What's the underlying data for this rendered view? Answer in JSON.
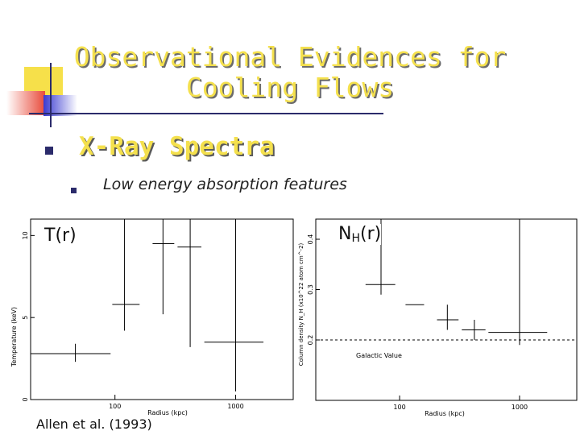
{
  "slide": {
    "title": "Observational Evidences for Cooling Flows",
    "heading": "X-Ray Spectra",
    "subpoint": "Low energy absorption features",
    "citation": "Allen et al. (1993)"
  },
  "colors": {
    "title": "#f4e04d",
    "bullet": "#2b2b6b",
    "deco_yellow": "#f6e04a",
    "deco_red": "#e84a3a",
    "deco_blue": "#3a3ad0"
  },
  "left_plot": {
    "label": "T(r)",
    "ylabel": "Temperature (keV)",
    "xlabel": "Radius (kpc)",
    "yticks": [
      "0",
      "5",
      "10"
    ],
    "xticks": [
      "100",
      "1000"
    ]
  },
  "right_plot": {
    "label_main": "N",
    "label_sub": "H",
    "label_tail": "(r)",
    "ylabel": "Column density N_H (x10^22 atom cm^-2)",
    "xlabel": "Radius (kpc)",
    "yticks": [
      "0.2",
      "0.3",
      "0.4"
    ],
    "xticks": [
      "100",
      "1000"
    ],
    "reference_label": "Galactic Value"
  },
  "chart_data": [
    {
      "type": "scatter",
      "title": "",
      "xlabel": "Radius (kpc)",
      "ylabel": "Temperature (keV)",
      "xscale": "log",
      "xlim": [
        20,
        3000
      ],
      "ylim": [
        0,
        11
      ],
      "points": [
        {
          "x": 47,
          "x_lo": 20,
          "x_hi": 92,
          "y": 2.8,
          "y_lo": 2.3,
          "y_hi": 3.4
        },
        {
          "x": 120,
          "x_lo": 95,
          "x_hi": 160,
          "y": 5.8,
          "y_lo": 4.2,
          "y_hi": 11
        },
        {
          "x": 250,
          "x_lo": 205,
          "x_hi": 310,
          "y": 9.5,
          "y_lo": 5.2,
          "y_hi": 11
        },
        {
          "x": 420,
          "x_lo": 330,
          "x_hi": 520,
          "y": 9.3,
          "y_lo": 3.2,
          "y_hi": 11
        },
        {
          "x": 1000,
          "x_lo": 550,
          "x_hi": 1700,
          "y": 3.5,
          "y_lo": 0.5,
          "y_hi": 11
        }
      ]
    },
    {
      "type": "scatter",
      "title": "",
      "xlabel": "Radius (kpc)",
      "ylabel": "Column density N_H (x10^22 atom cm^-2)",
      "xscale": "log",
      "xlim": [
        20,
        3000
      ],
      "ylim": [
        0.08,
        0.44
      ],
      "reference_line": {
        "y": 0.2,
        "label": "Galactic Value",
        "style": "dashed"
      },
      "points": [
        {
          "x": 70,
          "x_lo": 52,
          "x_hi": 92,
          "y": 0.31,
          "y_lo": 0.29,
          "y_hi": 0.44
        },
        {
          "x": 140,
          "x_lo": 112,
          "x_hi": 160,
          "y": 0.27
        },
        {
          "x": 250,
          "x_lo": 205,
          "x_hi": 310,
          "y": 0.24,
          "y_lo": 0.22,
          "y_hi": 0.27
        },
        {
          "x": 420,
          "x_lo": 330,
          "x_hi": 520,
          "y": 0.22,
          "y_lo": 0.2,
          "y_hi": 0.24
        },
        {
          "x": 1000,
          "x_lo": 550,
          "x_hi": 1700,
          "y": 0.215,
          "y_lo": 0.19,
          "y_hi": 0.44
        }
      ]
    }
  ]
}
